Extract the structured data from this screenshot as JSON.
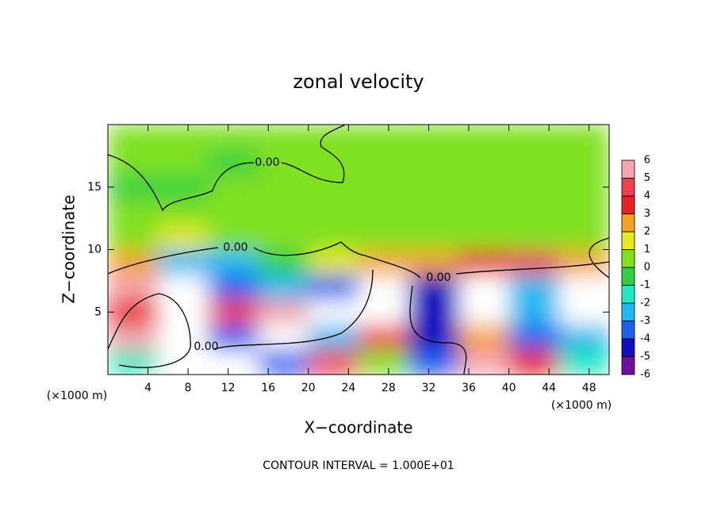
{
  "chart_data": {
    "type": "heatmap",
    "title": "zonal velocity",
    "xlabel": "X−coordinate",
    "ylabel": "Z−coordinate",
    "x_unit": "(×1000 m)",
    "footer": "CONTOUR INTERVAL = 1.000E+01",
    "contour_labels": [
      "0.00",
      "0.00",
      "0.00",
      "0.00"
    ],
    "xlim": [
      0,
      50
    ],
    "ylim": [
      0,
      20
    ],
    "xticks": [
      4,
      8,
      12,
      16,
      20,
      24,
      28,
      32,
      36,
      40,
      44,
      48
    ],
    "yticks": [
      5,
      10,
      15
    ],
    "values": [
      [
        -2,
        7,
        7,
        -4,
        4,
        0,
        -4,
        5,
        3,
        -2
      ],
      [
        5,
        8,
        -4,
        7,
        -3,
        4,
        -5,
        2,
        -4,
        -3
      ],
      [
        3,
        7,
        4,
        5,
        7,
        8,
        -5,
        6,
        -3,
        6
      ],
      [
        5,
        7,
        -4,
        -3,
        -4,
        8,
        -5,
        7,
        -3,
        7
      ],
      [
        2,
        -3,
        -2.5,
        -1,
        1.5,
        2,
        2.5,
        3,
        4,
        2
      ],
      [
        0.5,
        1.2,
        0.8,
        0.5,
        0.5,
        0.6,
        0.6,
        0.5,
        0.4,
        0.2
      ],
      [
        0.3,
        0.4,
        0.8,
        0.6,
        0.5,
        0.3,
        0.3,
        0.3,
        0.3,
        0.2
      ],
      [
        -0.3,
        -0.5,
        0.5,
        0.6,
        0.3,
        0.3,
        0.3,
        0.3,
        0.3,
        0.3
      ],
      [
        0.2,
        0,
        -0.5,
        0,
        0.2,
        0.3,
        0.3,
        0.2,
        0.3,
        0.3
      ],
      [
        0.3,
        0.3,
        0.3,
        0.3,
        0.3,
        0.3,
        0.3,
        0.3,
        0.3,
        0.3
      ]
    ],
    "colorbar": {
      "levels": [
        -6,
        -5,
        -4,
        -3,
        -2,
        -1,
        0,
        1,
        2,
        3,
        4,
        5,
        6
      ],
      "colors": [
        "#7010a0",
        "#1010c0",
        "#2060f0",
        "#20b8f0",
        "#20e8c0",
        "#30d040",
        "#80e020",
        "#e8e820",
        "#f5a020",
        "#e82020",
        "#f04050",
        "#f5a6b0"
      ],
      "over_color": "#ffffff"
    }
  }
}
